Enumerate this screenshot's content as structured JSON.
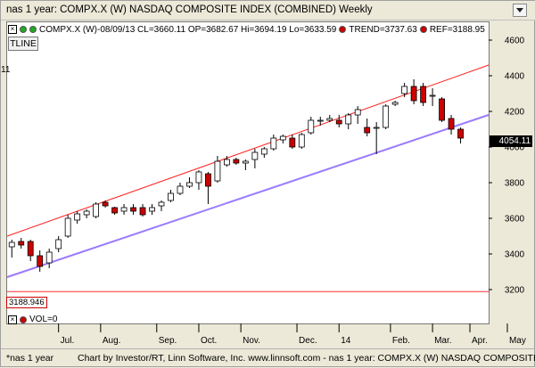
{
  "window": {
    "title": "nas 1 year: COMPX.X (W) NASDAQ COMPOSITE INDEX (COMBINED) Weekly"
  },
  "legend": {
    "close_icon": "close-icon",
    "series": "COMPX.X (W)-08/09/13 CL=3660.11 OP=3682.67 Hi=3694.19 Lo=3633.59",
    "trend": "TREND=3737.63",
    "ref": "REF=3188.95"
  },
  "toolbar": {
    "tline": "TLINE"
  },
  "stub_label": "11",
  "ref_label": "3188.946",
  "price_tag": "4054.11",
  "volume": {
    "label": "VOL=0"
  },
  "footer": {
    "tab": "*nas 1 year",
    "credit": "Chart by Investor/RT, Linn Software, Inc. www.linnsoft.com - nas 1 year: COMPX.X (W) NASDAQ COMPOSITE"
  },
  "colors": {
    "up": "#ffffff",
    "down": "#cc0000",
    "trend_upper": "#ff2020",
    "trend_lower": "#9b7bff",
    "ref_line": "#ff3030"
  },
  "chart_data": {
    "type": "candlestick",
    "yticks": [
      3200,
      3400,
      3600,
      3800,
      4000,
      4200,
      4400,
      4600
    ],
    "ylim": [
      3130,
      4600
    ],
    "xlim": [
      0,
      51.5
    ],
    "months": [
      "Jul.",
      "Aug.",
      "Sep.",
      "Oct.",
      "Nov.",
      "Dec.",
      "14",
      "Feb.",
      "Mar.",
      "Apr.",
      "May"
    ],
    "month_x": [
      5.5,
      10,
      16,
      20.5,
      25,
      31,
      35.5,
      41,
      45.5,
      49.5,
      53.5
    ],
    "candles": [
      {
        "o": 3440,
        "h": 3480,
        "l": 3380,
        "c": 3465
      },
      {
        "o": 3470,
        "h": 3490,
        "l": 3430,
        "c": 3450
      },
      {
        "o": 3470,
        "h": 3480,
        "l": 3360,
        "c": 3390
      },
      {
        "o": 3390,
        "h": 3420,
        "l": 3300,
        "c": 3330
      },
      {
        "o": 3350,
        "h": 3430,
        "l": 3320,
        "c": 3410
      },
      {
        "o": 3430,
        "h": 3500,
        "l": 3410,
        "c": 3480
      },
      {
        "o": 3500,
        "h": 3620,
        "l": 3490,
        "c": 3600
      },
      {
        "o": 3590,
        "h": 3640,
        "l": 3570,
        "c": 3625
      },
      {
        "o": 3620,
        "h": 3650,
        "l": 3600,
        "c": 3640
      },
      {
        "o": 3610,
        "h": 3690,
        "l": 3600,
        "c": 3680
      },
      {
        "o": 3690,
        "h": 3700,
        "l": 3660,
        "c": 3670
      },
      {
        "o": 3660,
        "h": 3665,
        "l": 3620,
        "c": 3630
      },
      {
        "o": 3640,
        "h": 3680,
        "l": 3620,
        "c": 3660
      },
      {
        "o": 3660,
        "h": 3680,
        "l": 3620,
        "c": 3640
      },
      {
        "o": 3660,
        "h": 3680,
        "l": 3610,
        "c": 3620
      },
      {
        "o": 3640,
        "h": 3680,
        "l": 3620,
        "c": 3660
      },
      {
        "o": 3670,
        "h": 3700,
        "l": 3640,
        "c": 3690
      },
      {
        "o": 3700,
        "h": 3760,
        "l": 3690,
        "c": 3740
      },
      {
        "o": 3740,
        "h": 3800,
        "l": 3730,
        "c": 3780
      },
      {
        "o": 3780,
        "h": 3830,
        "l": 3770,
        "c": 3800
      },
      {
        "o": 3800,
        "h": 3870,
        "l": 3760,
        "c": 3860
      },
      {
        "o": 3850,
        "h": 3860,
        "l": 3680,
        "c": 3780
      },
      {
        "o": 3810,
        "h": 3950,
        "l": 3800,
        "c": 3920
      },
      {
        "o": 3900,
        "h": 3950,
        "l": 3890,
        "c": 3930
      },
      {
        "o": 3930,
        "h": 3940,
        "l": 3900,
        "c": 3910
      },
      {
        "o": 3910,
        "h": 3930,
        "l": 3870,
        "c": 3920
      },
      {
        "o": 3930,
        "h": 3990,
        "l": 3880,
        "c": 3970
      },
      {
        "o": 3960,
        "h": 4000,
        "l": 3940,
        "c": 3990
      },
      {
        "o": 3990,
        "h": 4070,
        "l": 3980,
        "c": 4050
      },
      {
        "o": 4040,
        "h": 4070,
        "l": 4020,
        "c": 4060
      },
      {
        "o": 4050,
        "h": 4070,
        "l": 3990,
        "c": 4000
      },
      {
        "o": 4000,
        "h": 4080,
        "l": 3990,
        "c": 4070
      },
      {
        "o": 4080,
        "h": 4170,
        "l": 4070,
        "c": 4150
      },
      {
        "o": 4150,
        "h": 4170,
        "l": 4120,
        "c": 4150
      },
      {
        "o": 4150,
        "h": 4180,
        "l": 4140,
        "c": 4160
      },
      {
        "o": 4150,
        "h": 4180,
        "l": 4110,
        "c": 4130
      },
      {
        "o": 4130,
        "h": 4190,
        "l": 4100,
        "c": 4180
      },
      {
        "o": 4180,
        "h": 4230,
        "l": 4130,
        "c": 4210
      },
      {
        "o": 4110,
        "h": 4160,
        "l": 4060,
        "c": 4080
      },
      {
        "o": 4110,
        "h": 4140,
        "l": 3960,
        "c": 4110
      },
      {
        "o": 4110,
        "h": 4240,
        "l": 4100,
        "c": 4230
      },
      {
        "o": 4240,
        "h": 4260,
        "l": 4230,
        "c": 4250
      },
      {
        "o": 4300,
        "h": 4360,
        "l": 4280,
        "c": 4340
      },
      {
        "o": 4340,
        "h": 4380,
        "l": 4240,
        "c": 4260
      },
      {
        "o": 4340,
        "h": 4360,
        "l": 4230,
        "c": 4250
      },
      {
        "o": 4290,
        "h": 4330,
        "l": 4230,
        "c": 4290
      },
      {
        "o": 4270,
        "h": 4280,
        "l": 4140,
        "c": 4150
      },
      {
        "o": 4160,
        "h": 4180,
        "l": 4070,
        "c": 4100
      },
      {
        "o": 4100,
        "h": 4110,
        "l": 4020,
        "c": 4050
      }
    ],
    "trend_upper": {
      "x1": 0,
      "y1": 3500,
      "x2": 51.5,
      "y2": 4460
    },
    "trend_lower": {
      "x1": 0,
      "y1": 3270,
      "x2": 51.5,
      "y2": 4180
    },
    "ref_value": 3188.95
  }
}
